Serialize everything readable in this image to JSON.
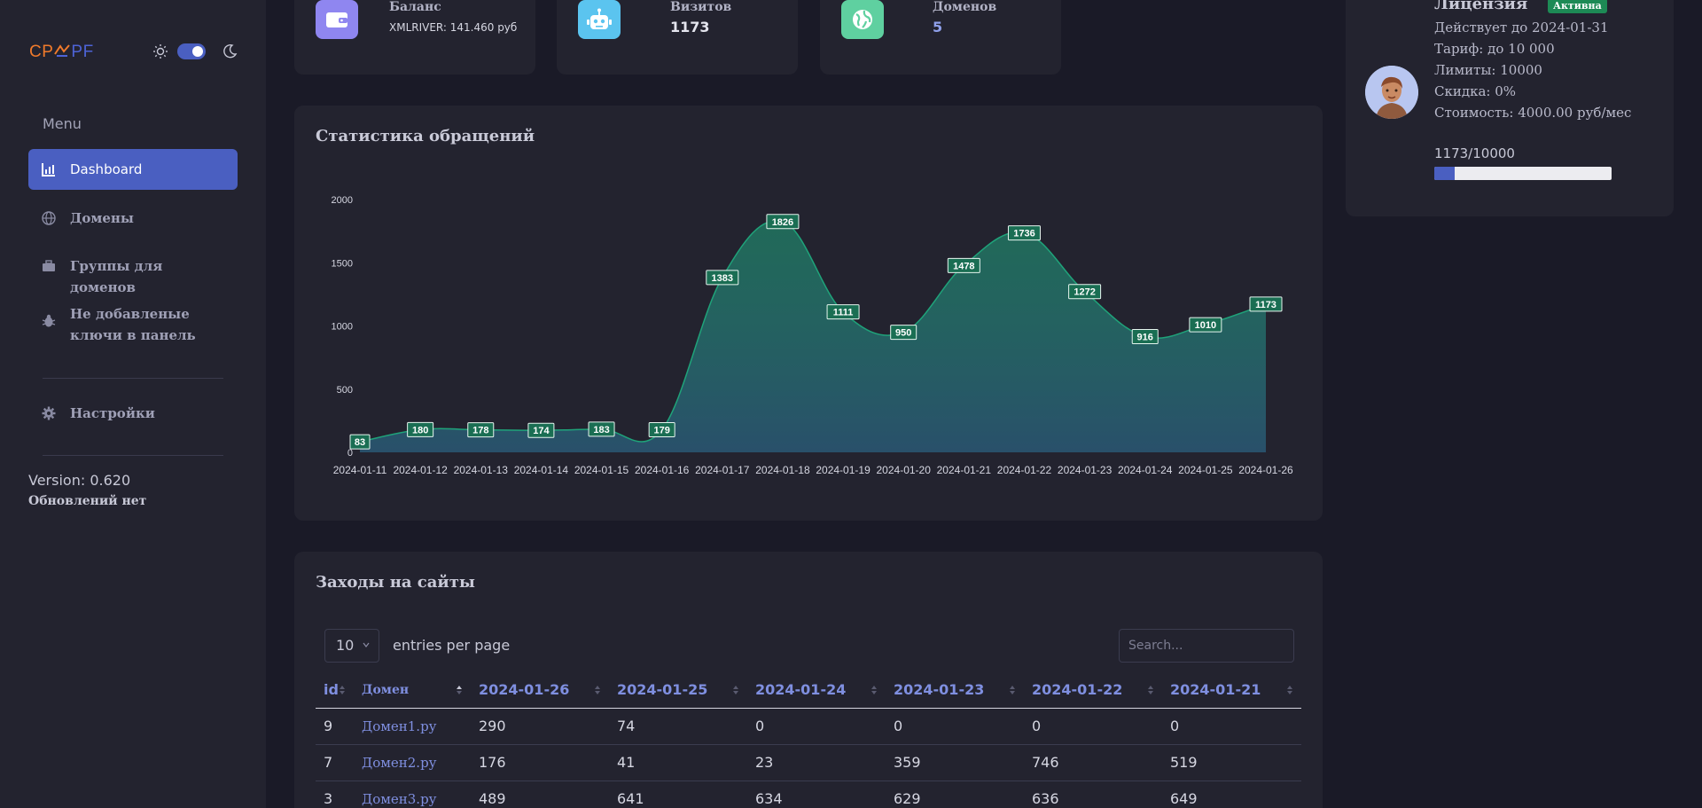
{
  "sidebar": {
    "logo_left": "CP",
    "logo_right": "PF",
    "menu_title": "Menu",
    "items": [
      {
        "label": "Dashboard",
        "icon": "chart-bar-icon",
        "active": true
      },
      {
        "label": "Домены",
        "icon": "globe-icon"
      },
      {
        "label": "Группы для доменов",
        "icon": "briefcase-icon"
      },
      {
        "label": "Не добавленые ключи в панель",
        "icon": "bug-icon"
      },
      {
        "label": "Настройки",
        "icon": "gear-icon"
      }
    ],
    "version": "Version: 0.620",
    "updates": "Обновлений нет"
  },
  "stats": [
    {
      "label": "Баланс",
      "sub": "XMLRIVER: 141.460 руб",
      "icon": "wallet-icon",
      "color": "#8f86f0"
    },
    {
      "label": "Визитов",
      "value": "1173",
      "icon": "robot-icon",
      "color": "#5bc4ef"
    },
    {
      "label": "Доменов",
      "value": "5",
      "icon": "globe-icon",
      "color": "#5fd0a0"
    }
  ],
  "license": {
    "title": "Лицензия",
    "badge": "Активна",
    "valid_until": "Действует до 2024-01-31",
    "tariff": "Тариф: до 10 000",
    "limits": "Лимиты: 10000",
    "discount": "Скидка: 0%",
    "cost": "Стоимость: 4000.00 руб/мес",
    "progress_label": "1173/10000",
    "progress_fraction": 0.1173
  },
  "chart_card": {
    "title": "Статистика обращений"
  },
  "chart_data": {
    "type": "area",
    "x": [
      "2024-01-11",
      "2024-01-12",
      "2024-01-13",
      "2024-01-14",
      "2024-01-15",
      "2024-01-16",
      "2024-01-17",
      "2024-01-18",
      "2024-01-19",
      "2024-01-20",
      "2024-01-21",
      "2024-01-22",
      "2024-01-23",
      "2024-01-24",
      "2024-01-25",
      "2024-01-26"
    ],
    "values": [
      83,
      180,
      178,
      174,
      183,
      179,
      1383,
      1826,
      1111,
      950,
      1478,
      1736,
      1272,
      916,
      1010,
      1173
    ],
    "yticks": [
      "2000",
      "1500",
      "1000",
      "500",
      "0"
    ],
    "ylim": [
      0,
      2000
    ],
    "color": "#1fa37a"
  },
  "table_card": {
    "title": "Заходы на сайты",
    "entries_value": "10",
    "entries_label": "entries per page",
    "search_placeholder": "Search..."
  },
  "table": {
    "headers": [
      "id",
      "Домен",
      "2024-01-26",
      "2024-01-25",
      "2024-01-24",
      "2024-01-23",
      "2024-01-22",
      "2024-01-21"
    ],
    "rows": [
      [
        "9",
        "Домен1.ру",
        "290",
        "74",
        "0",
        "0",
        "0",
        "0"
      ],
      [
        "7",
        "Домен2.ру",
        "176",
        "41",
        "23",
        "359",
        "746",
        "519"
      ],
      [
        "3",
        "Домен3.ру",
        "489",
        "641",
        "634",
        "629",
        "636",
        "649"
      ]
    ]
  }
}
